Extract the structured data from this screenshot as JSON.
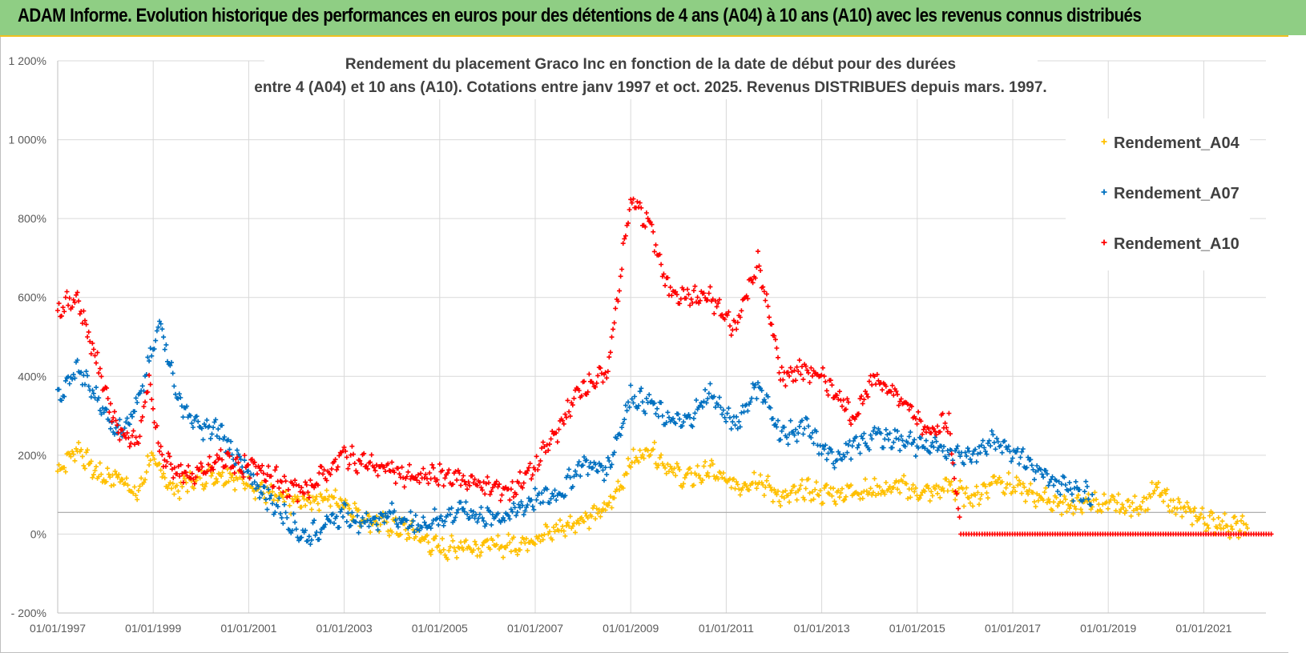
{
  "banner": {
    "text": "ADAM Informe. Evolution historique des performances en euros pour des détentions de 4 ans (A04) à 10 ans (A10) avec les revenus connus distribués",
    "color": "#8fce84"
  },
  "chart_data": {
    "type": "scatter",
    "title_line1": "Rendement du placement Graco Inc en fonction de la date de début pour des durées",
    "title_line2": "entre 4 (A04) et 10 ans (A10). Cotations entre janv 1997 et oct. 2025. Revenus DISTRIBUES depuis mars. 1997.",
    "xlabel": "",
    "ylabel": "",
    "x_range": [
      "1997-01-01",
      "2022-06-30"
    ],
    "ylim": [
      -200,
      1200
    ],
    "y_ticks": [
      -200,
      0,
      200,
      400,
      600,
      800,
      1000,
      1200
    ],
    "y_tick_labels": [
      "- 200%",
      "0%",
      "200%",
      "400%",
      "600%",
      "800%",
      "1 000%",
      "1 200%"
    ],
    "x_tick_labels": [
      "01/01/1997",
      "01/01/1999",
      "01/01/2001",
      "01/01/2003",
      "01/01/2005",
      "01/01/2007",
      "01/01/2009",
      "01/01/2011",
      "01/01/2013",
      "01/01/2015",
      "01/01/2017",
      "01/01/2019",
      "01/01/2021"
    ],
    "grid": true,
    "legend_position": "top-right",
    "marker": "+",
    "series": [
      {
        "name": "Rendement_A04",
        "color": "#ffc000",
        "points": [
          [
            "1997-01-01",
            160
          ],
          [
            "1997-06-01",
            220
          ],
          [
            "1997-11-01",
            150
          ],
          [
            "1998-06-01",
            140
          ],
          [
            "1998-09-01",
            90
          ],
          [
            "1998-12-01",
            190
          ],
          [
            "1999-03-01",
            160
          ],
          [
            "1999-06-01",
            110
          ],
          [
            "1999-10-01",
            130
          ],
          [
            "2000-03-01",
            150
          ],
          [
            "2000-08-01",
            150
          ],
          [
            "2001-01-01",
            130
          ],
          [
            "2001-06-01",
            100
          ],
          [
            "2001-10-01",
            80
          ],
          [
            "2002-03-01",
            80
          ],
          [
            "2002-08-01",
            95
          ],
          [
            "2003-01-01",
            80
          ],
          [
            "2003-06-01",
            40
          ],
          [
            "2004-01-01",
            20
          ],
          [
            "2004-07-01",
            0
          ],
          [
            "2005-01-01",
            -40
          ],
          [
            "2005-07-01",
            -30
          ],
          [
            "2006-01-01",
            -30
          ],
          [
            "2006-07-01",
            -30
          ],
          [
            "2007-01-01",
            -10
          ],
          [
            "2007-07-01",
            10
          ],
          [
            "2008-01-01",
            40
          ],
          [
            "2008-07-01",
            60
          ],
          [
            "2009-01-01",
            180
          ],
          [
            "2009-06-01",
            220
          ],
          [
            "2009-10-01",
            170
          ],
          [
            "2010-03-01",
            140
          ],
          [
            "2010-09-01",
            160
          ],
          [
            "2011-03-01",
            120
          ],
          [
            "2011-09-01",
            140
          ],
          [
            "2012-03-01",
            90
          ],
          [
            "2012-09-01",
            110
          ],
          [
            "2013-03-01",
            100
          ],
          [
            "2013-09-01",
            110
          ],
          [
            "2014-03-01",
            110
          ],
          [
            "2014-09-01",
            120
          ],
          [
            "2015-03-01",
            100
          ],
          [
            "2015-09-01",
            120
          ],
          [
            "2016-03-01",
            90
          ],
          [
            "2016-09-01",
            140
          ],
          [
            "2017-03-01",
            110
          ],
          [
            "2017-09-01",
            90
          ],
          [
            "2018-03-01",
            70
          ],
          [
            "2018-09-01",
            80
          ],
          [
            "2019-03-01",
            70
          ],
          [
            "2019-09-01",
            70
          ],
          [
            "2020-01-01",
            110
          ],
          [
            "2020-06-01",
            70
          ],
          [
            "2020-12-01",
            40
          ],
          [
            "2021-06-01",
            25
          ],
          [
            "2021-12-01",
            15
          ]
        ]
      },
      {
        "name": "Rendement_A07",
        "color": "#0070c0",
        "points": [
          [
            "1997-01-01",
            340
          ],
          [
            "1997-06-01",
            420
          ],
          [
            "1997-11-01",
            340
          ],
          [
            "1998-04-01",
            260
          ],
          [
            "1998-09-01",
            320
          ],
          [
            "1998-12-01",
            430
          ],
          [
            "1999-03-01",
            540
          ],
          [
            "1999-07-01",
            350
          ],
          [
            "1999-12-01",
            270
          ],
          [
            "2000-06-01",
            260
          ],
          [
            "2000-12-01",
            160
          ],
          [
            "2001-06-01",
            90
          ],
          [
            "2001-10-01",
            50
          ],
          [
            "2002-03-01",
            -10
          ],
          [
            "2002-08-01",
            20
          ],
          [
            "2003-01-01",
            50
          ],
          [
            "2003-06-01",
            30
          ],
          [
            "2004-01-01",
            50
          ],
          [
            "2004-07-01",
            20
          ],
          [
            "2005-01-01",
            40
          ],
          [
            "2005-07-01",
            60
          ],
          [
            "2006-01-01",
            40
          ],
          [
            "2006-07-01",
            50
          ],
          [
            "2007-01-01",
            90
          ],
          [
            "2007-07-01",
            100
          ],
          [
            "2008-01-01",
            180
          ],
          [
            "2008-07-01",
            160
          ],
          [
            "2009-01-01",
            350
          ],
          [
            "2009-06-01",
            330
          ],
          [
            "2009-10-01",
            290
          ],
          [
            "2010-03-01",
            280
          ],
          [
            "2010-09-01",
            360
          ],
          [
            "2011-03-01",
            270
          ],
          [
            "2011-09-01",
            380
          ],
          [
            "2012-03-01",
            250
          ],
          [
            "2012-09-01",
            270
          ],
          [
            "2013-03-01",
            190
          ],
          [
            "2013-09-01",
            220
          ],
          [
            "2014-03-01",
            250
          ],
          [
            "2014-09-01",
            240
          ],
          [
            "2015-03-01",
            220
          ],
          [
            "2015-09-01",
            210
          ],
          [
            "2016-03-01",
            200
          ],
          [
            "2016-09-01",
            240
          ],
          [
            "2017-03-01",
            200
          ],
          [
            "2017-09-01",
            140
          ],
          [
            "2018-03-01",
            120
          ],
          [
            "2018-09-01",
            100
          ]
        ]
      },
      {
        "name": "Rendement_A10",
        "color": "#ff0000",
        "points": [
          [
            "1997-01-01",
            570
          ],
          [
            "1997-06-01",
            600
          ],
          [
            "1997-11-01",
            430
          ],
          [
            "1998-04-01",
            270
          ],
          [
            "1998-09-01",
            230
          ],
          [
            "1998-12-01",
            380
          ],
          [
            "1999-03-01",
            200
          ],
          [
            "1999-08-01",
            150
          ],
          [
            "2000-01-01",
            150
          ],
          [
            "2000-06-01",
            190
          ],
          [
            "2000-12-01",
            170
          ],
          [
            "2001-06-01",
            160
          ],
          [
            "2001-10-01",
            120
          ],
          [
            "2002-03-01",
            110
          ],
          [
            "2002-08-01",
            150
          ],
          [
            "2003-01-01",
            200
          ],
          [
            "2003-06-01",
            180
          ],
          [
            "2004-01-01",
            160
          ],
          [
            "2004-07-01",
            140
          ],
          [
            "2005-01-01",
            150
          ],
          [
            "2005-07-01",
            140
          ],
          [
            "2006-01-01",
            120
          ],
          [
            "2006-07-01",
            110
          ],
          [
            "2007-01-01",
            170
          ],
          [
            "2007-07-01",
            270
          ],
          [
            "2008-01-01",
            380
          ],
          [
            "2008-07-01",
            400
          ],
          [
            "2009-01-01",
            850
          ],
          [
            "2009-06-01",
            780
          ],
          [
            "2009-10-01",
            630
          ],
          [
            "2010-03-01",
            600
          ],
          [
            "2010-09-01",
            600
          ],
          [
            "2011-03-01",
            520
          ],
          [
            "2011-09-01",
            690
          ],
          [
            "2012-03-01",
            400
          ],
          [
            "2012-09-01",
            420
          ],
          [
            "2013-03-01",
            380
          ],
          [
            "2013-09-01",
            300
          ],
          [
            "2014-03-01",
            400
          ],
          [
            "2014-09-01",
            340
          ],
          [
            "2015-03-01",
            270
          ],
          [
            "2015-09-01",
            280
          ],
          [
            "2015-12-01",
            0
          ],
          [
            "2016-06-01",
            0
          ],
          [
            "2017-06-01",
            0
          ],
          [
            "2018-06-01",
            0
          ],
          [
            "2019-06-01",
            0
          ],
          [
            "2020-06-01",
            0
          ],
          [
            "2021-06-01",
            0
          ],
          [
            "2022-06-01",
            0
          ]
        ]
      }
    ]
  }
}
